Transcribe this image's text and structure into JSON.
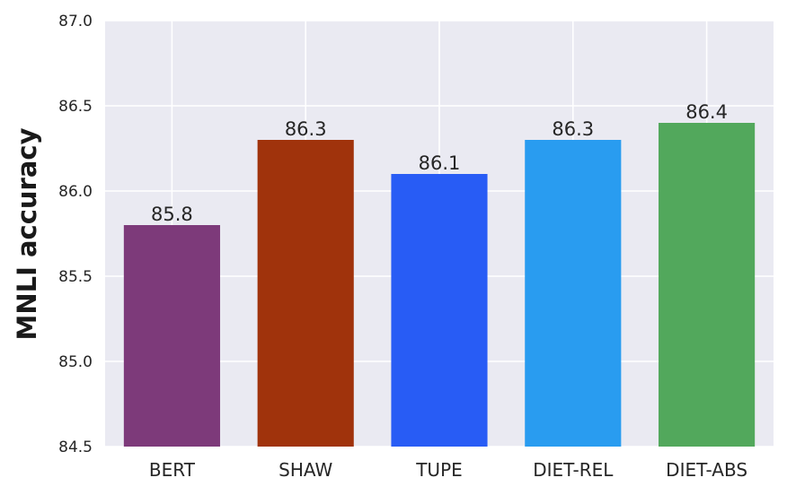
{
  "chart_data": {
    "type": "bar",
    "title": "",
    "xlabel": "",
    "ylabel": "MNLI accuracy",
    "categories": [
      "BERT",
      "SHAW",
      "TUPE",
      "DIET-REL",
      "DIET-ABS"
    ],
    "values": [
      85.8,
      86.3,
      86.1,
      86.3,
      86.4
    ],
    "data_labels": [
      "85.8",
      "86.3",
      "86.1",
      "86.3",
      "86.4"
    ],
    "bar_colors": [
      "#7d3a7a",
      "#a0330c",
      "#285cf5",
      "#299cf0",
      "#52a85c"
    ],
    "ylim": [
      84.5,
      87.0
    ],
    "yticks": [
      84.5,
      85.0,
      85.5,
      86.0,
      86.5,
      87.0
    ],
    "ytick_labels": [
      "84.5",
      "85.0",
      "85.5",
      "86.0",
      "86.5",
      "87.0"
    ],
    "grid": true,
    "background_color": "#eaeaf2",
    "grid_color": "#ffffff"
  }
}
